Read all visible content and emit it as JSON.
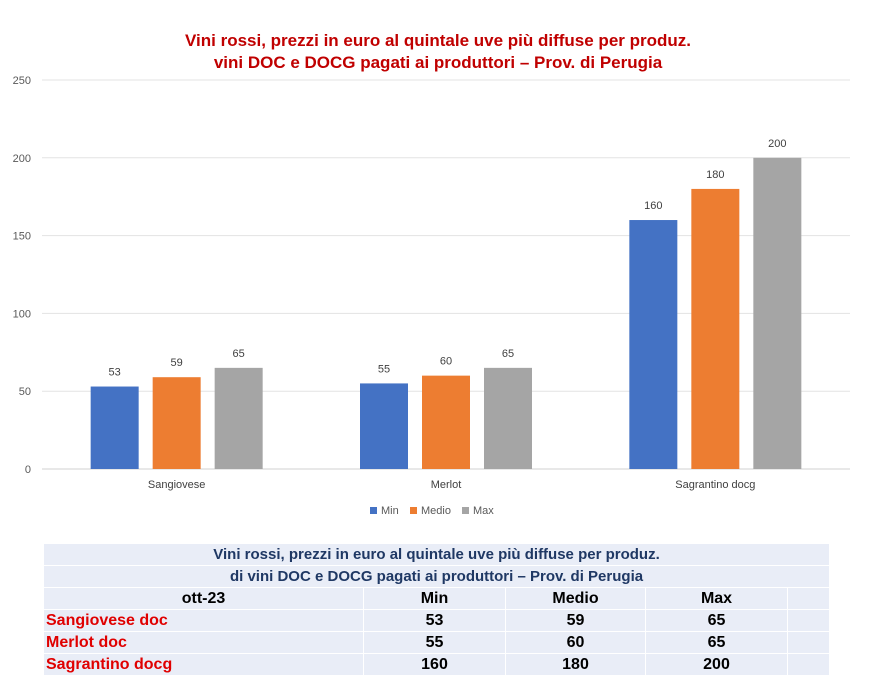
{
  "chart_data": {
    "type": "bar",
    "title_lines": [
      "Vini rossi, prezzi in euro al quintale uve più diffuse per produz.",
      "vini DOC e DOCG pagati ai produttori – Prov. di Perugia"
    ],
    "categories": [
      "Sangiovese",
      "Merlot",
      "Sagrantino docg"
    ],
    "series": [
      {
        "name": "Min",
        "values": [
          53,
          55,
          160
        ],
        "color": "#4472c4"
      },
      {
        "name": "Medio",
        "values": [
          59,
          60,
          180
        ],
        "color": "#ed7d31"
      },
      {
        "name": "Max",
        "values": [
          65,
          65,
          200
        ],
        "color": "#a5a5a5"
      }
    ],
    "ylim": [
      0,
      250
    ],
    "yticks": [
      0,
      50,
      100,
      150,
      200,
      250
    ],
    "grid": true,
    "legend_position": "bottom",
    "data_labels": true
  },
  "table": {
    "title_lines": [
      "Vini rossi, prezzi in euro al quintale uve più diffuse per produz.",
      "di vini DOC e DOCG pagati ai produttori – Prov. di Perugia"
    ],
    "period": "ott-23",
    "headers": [
      "Min",
      "Medio",
      "Max"
    ],
    "rows": [
      {
        "label": "Sangiovese doc",
        "values": [
          "53",
          "59",
          "65"
        ]
      },
      {
        "label": "Merlot doc",
        "values": [
          "55",
          "60",
          "65"
        ]
      },
      {
        "label": "Sagrantino docg",
        "values": [
          "160",
          "180",
          "200"
        ]
      }
    ]
  }
}
